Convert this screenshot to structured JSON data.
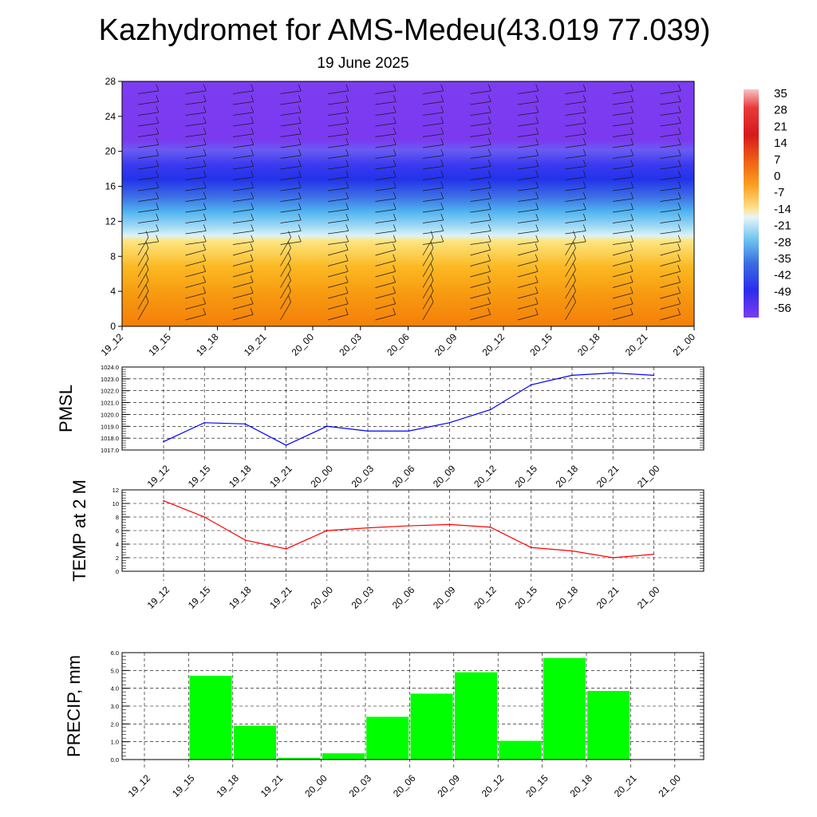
{
  "title": "Kazhydromet for AMS-Medeu(43.019 77.039)",
  "subtitle": "19 June 2025",
  "colors": {
    "pmsl_line": "#0000ff",
    "temp_line": "#ff0000",
    "precip_bar": "#00ff00",
    "grid": "#000000"
  },
  "chart_data": [
    {
      "type": "heatmap",
      "name": "temperature-cross-section",
      "y_ticks": [
        "0",
        "4",
        "8",
        "12",
        "16",
        "20",
        "24",
        "28"
      ],
      "ylim": [
        0,
        28
      ],
      "x_ticks": [
        "19_12",
        "19_15",
        "19_18",
        "19_21",
        "20_00",
        "20_03",
        "20_06",
        "20_09",
        "20_12",
        "20_15",
        "20_18",
        "20_21",
        "21_00"
      ],
      "colorbar_labels": [
        "35",
        "28",
        "21",
        "14",
        "7",
        "0",
        "-7",
        "-14",
        "-21",
        "-28",
        "-35",
        "-42",
        "-49",
        "-56"
      ],
      "legend_position": "right",
      "wind_barbs": true
    },
    {
      "type": "line",
      "name": "pmsl",
      "ylabel": "PMSL",
      "x": [
        "19_12",
        "19_15",
        "19_18",
        "19_21",
        "20_00",
        "20_03",
        "20_06",
        "20_09",
        "20_12",
        "20_15",
        "20_18",
        "20_21",
        "21_00"
      ],
      "values": [
        1017.7,
        1019.3,
        1019.2,
        1017.4,
        1019.0,
        1018.6,
        1018.6,
        1019.3,
        1020.4,
        1022.5,
        1023.3,
        1023.5,
        1023.3
      ],
      "y_ticks": [
        "1017.0",
        "1018.0",
        "1019.0",
        "1020.0",
        "1021.0",
        "1022.0",
        "1023.0",
        "1024.0"
      ],
      "ylim": [
        1017,
        1024
      ],
      "grid": true
    },
    {
      "type": "line",
      "name": "temp",
      "ylabel": "TEMP at 2 M",
      "x": [
        "19_12",
        "19_15",
        "19_18",
        "19_21",
        "20_00",
        "20_03",
        "20_06",
        "20_09",
        "20_12",
        "20_15",
        "20_18",
        "20_21",
        "21_00"
      ],
      "values": [
        10.4,
        8.0,
        4.6,
        3.3,
        6.0,
        6.4,
        6.7,
        6.9,
        6.5,
        3.5,
        3.0,
        2.0,
        2.5
      ],
      "y_ticks": [
        "0",
        "2",
        "4",
        "6",
        "8",
        "10",
        "12"
      ],
      "ylim": [
        0,
        12
      ],
      "grid": true
    },
    {
      "type": "bar",
      "name": "precip",
      "ylabel": "PRECIP, mm",
      "categories": [
        "19_12",
        "19_15",
        "19_18",
        "19_21",
        "20_00",
        "20_03",
        "20_06",
        "20_09",
        "20_12",
        "20_15",
        "20_18",
        "20_21",
        "21_00"
      ],
      "values": [
        0,
        4.7,
        1.9,
        0.1,
        0.35,
        2.4,
        3.7,
        4.9,
        1.05,
        5.7,
        3.85,
        0,
        0
      ],
      "y_ticks": [
        "0.0",
        "1.0",
        "2.0",
        "3.0",
        "4.0",
        "5.0",
        "6.0"
      ],
      "ylim": [
        0,
        6
      ],
      "grid": true
    }
  ]
}
